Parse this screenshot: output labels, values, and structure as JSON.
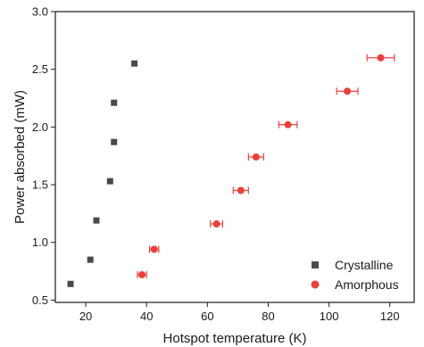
{
  "chart_data": {
    "type": "scatter",
    "title": "",
    "xlabel": "Hotspot temperature (K)",
    "ylabel": "Power absorbed (mW)",
    "xlim": [
      10,
      128
    ],
    "ylim": [
      0.48,
      3.0
    ],
    "xticks": [
      20,
      40,
      60,
      80,
      100,
      120
    ],
    "yticks": [
      0.5,
      1.0,
      1.5,
      2.0,
      2.5,
      3.0
    ],
    "xtick_labels": [
      "20",
      "40",
      "60",
      "80",
      "100",
      "120"
    ],
    "ytick_labels": [
      "0.5",
      "1.0",
      "1.5",
      "2.0",
      "2.5",
      "3.0"
    ],
    "grid": false,
    "legend_position": "bottom-right",
    "series": [
      {
        "name": "Crystalline",
        "marker": "square",
        "color": "#4a4a4a",
        "points": [
          {
            "x": 15.0,
            "y": 0.64
          },
          {
            "x": 21.5,
            "y": 0.85
          },
          {
            "x": 23.5,
            "y": 1.19
          },
          {
            "x": 28.0,
            "y": 1.53
          },
          {
            "x": 29.3,
            "y": 1.87
          },
          {
            "x": 29.3,
            "y": 2.21
          },
          {
            "x": 36.0,
            "y": 2.55
          }
        ]
      },
      {
        "name": "Amorphous",
        "marker": "circle",
        "color": "#e8413c",
        "points": [
          {
            "x": 38.5,
            "y": 0.72,
            "xerr": 1.5
          },
          {
            "x": 42.5,
            "y": 0.94,
            "xerr": 1.5
          },
          {
            "x": 63.0,
            "y": 1.16,
            "xerr": 2.0
          },
          {
            "x": 71.0,
            "y": 1.45,
            "xerr": 2.5
          },
          {
            "x": 76.0,
            "y": 1.74,
            "xerr": 2.5
          },
          {
            "x": 86.5,
            "y": 2.02,
            "xerr": 3.0
          },
          {
            "x": 106.0,
            "y": 2.31,
            "xerr": 3.5
          },
          {
            "x": 117.0,
            "y": 2.6,
            "xerr": 4.5
          }
        ]
      }
    ]
  }
}
